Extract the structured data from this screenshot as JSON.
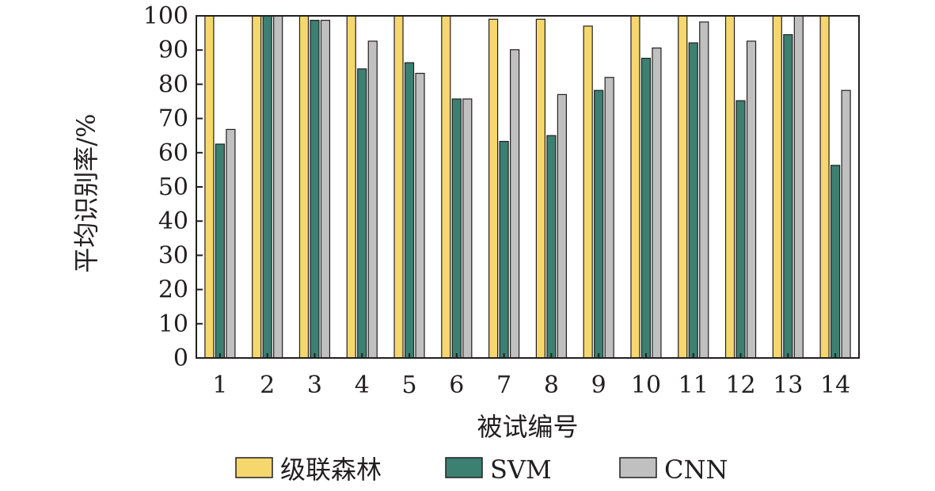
{
  "chart_data": {
    "type": "bar",
    "title": "",
    "xlabel": "被试编号",
    "ylabel": "平均识别率/%",
    "ylim": [
      0,
      100
    ],
    "yticks": [
      0,
      10,
      20,
      30,
      40,
      50,
      60,
      70,
      80,
      90,
      100
    ],
    "categories": [
      "1",
      "2",
      "3",
      "4",
      "5",
      "6",
      "7",
      "8",
      "9",
      "10",
      "11",
      "12",
      "13",
      "14"
    ],
    "series": [
      {
        "name": "级联森林",
        "color": "#f5d76e",
        "values": [
          100,
          100,
          100,
          100,
          100,
          100,
          99,
          99,
          97,
          100,
          100,
          100,
          100,
          100
        ]
      },
      {
        "name": "SVM",
        "color": "#3b8070",
        "values": [
          62.5,
          100,
          98.7,
          84.5,
          86.3,
          75.7,
          63.3,
          65,
          78.2,
          87.6,
          92.1,
          75.2,
          94.5,
          56.3
        ]
      },
      {
        "name": "CNN",
        "color": "#c0c0c0",
        "values": [
          66.8,
          100,
          98.7,
          92.6,
          83.2,
          75.7,
          90.1,
          77,
          82,
          90.6,
          98.2,
          92.6,
          100,
          78.2
        ]
      }
    ],
    "grid": false,
    "legend_position": "bottom"
  }
}
